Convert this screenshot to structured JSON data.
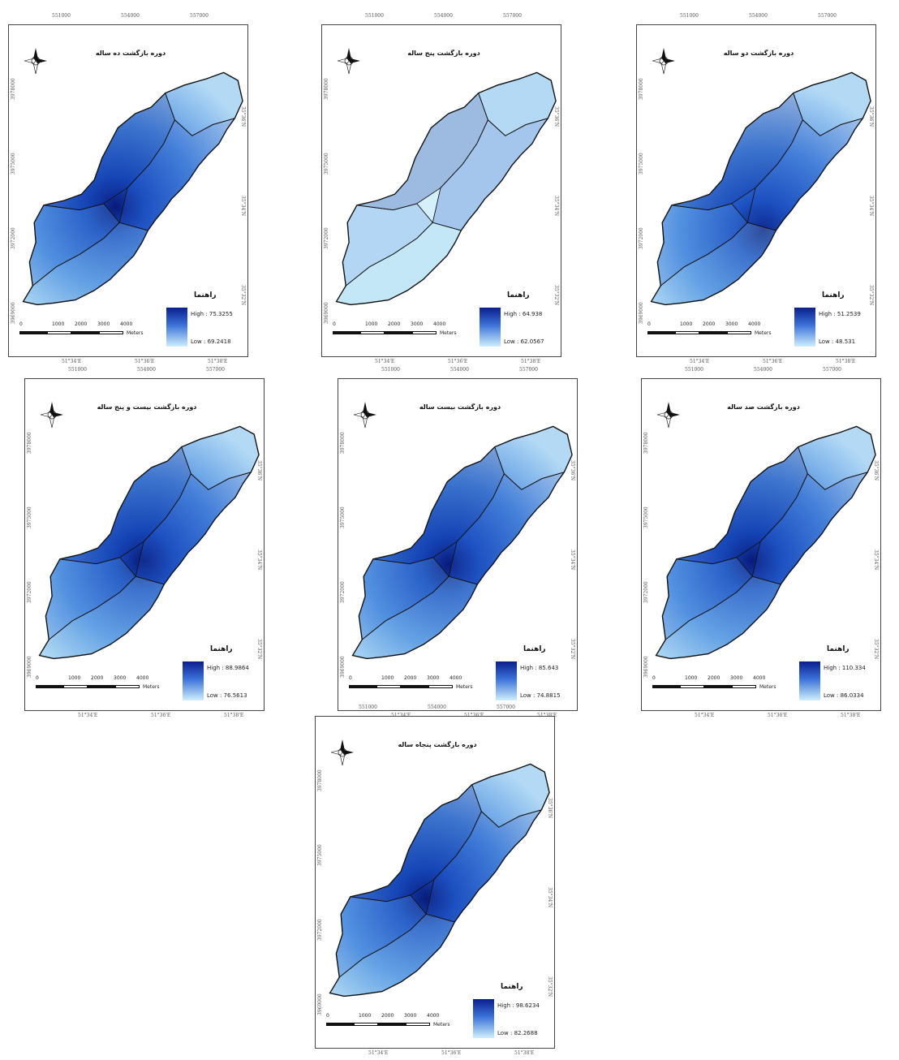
{
  "maps": [
    {
      "id": "m1",
      "title": "دوره بازگشت ده ساله",
      "legend_title": "راهنما",
      "high": "High : 75.3255",
      "low": "Low : 69.2418",
      "unit": "Meters",
      "scale_labels": [
        "0",
        "1000",
        "2000",
        "3000",
        "4000"
      ],
      "top_ticks": [
        "551000",
        "554000",
        "557000"
      ],
      "bottom_ticks": [
        "51°34'E",
        "51°36'E",
        "51°38'E"
      ],
      "left_ticks": [
        "3978000",
        "3975000",
        "3972000",
        "3969000"
      ],
      "right_ticks": [
        "35°36'N",
        "35°34'N",
        "35°32'N"
      ],
      "color_ramp": [
        "#0a1f8f",
        "#cfeefc"
      ]
    },
    {
      "id": "m2",
      "title": "دوره بازگشت پنج ساله",
      "legend_title": "راهنما",
      "high": "High : 64.938",
      "low": "Low : 62.0567",
      "unit": "Meters",
      "scale_labels": [
        "0",
        "1000",
        "2000",
        "3000",
        "4000"
      ],
      "top_ticks": [
        "551000",
        "554000",
        "557000"
      ],
      "bottom_ticks": [
        "51°34'E",
        "51°36'E",
        "51°38'E"
      ],
      "left_ticks": [
        "3978000",
        "3975000",
        "3972000",
        "3969000"
      ],
      "right_ticks": [
        "35°36'N",
        "35°34'N",
        "35°32'N"
      ],
      "color_ramp": [
        "#0a1f8f",
        "#cfeefc"
      ]
    },
    {
      "id": "m3",
      "title": "دوره بازگشت دو ساله",
      "legend_title": "راهنما",
      "high": "High : 51.2539",
      "low": "Low : 48.531",
      "unit": "Meters",
      "scale_labels": [
        "0",
        "1000",
        "2000",
        "3000",
        "4000"
      ],
      "top_ticks": [
        "551000",
        "554000",
        "557000"
      ],
      "bottom_ticks": [
        "51°34'E",
        "51°36'E",
        "51°38'E"
      ],
      "left_ticks": [
        "3978000",
        "3975000",
        "3972000",
        "3969000"
      ],
      "right_ticks": [
        "35°36'N",
        "35°34'N",
        "35°32'N"
      ],
      "color_ramp": [
        "#0a1f8f",
        "#cfeefc"
      ]
    },
    {
      "id": "m4",
      "title": "دوره بازگشت بیست و پنج ساله",
      "legend_title": "راهنما",
      "high": "High : 88.9864",
      "low": "Low : 76.5613",
      "unit": "Meters",
      "scale_labels": [
        "0",
        "1000",
        "2000",
        "3000",
        "4000"
      ],
      "top_ticks": [
        "551000",
        "554000",
        "557000"
      ],
      "bottom_ticks": [
        "51°34'E",
        "51°36'E",
        "51°38'E"
      ],
      "left_ticks": [
        "3978000",
        "3975000",
        "3972000",
        "3969000"
      ],
      "right_ticks": [
        "35°36'N",
        "35°34'N",
        "35°32'N"
      ],
      "color_ramp": [
        "#0a1f8f",
        "#cfeefc"
      ]
    },
    {
      "id": "m5",
      "title": "دوره بازگشت بیست ساله",
      "legend_title": "راهنما",
      "high": "High : 85.643",
      "low": "Low : 74.8815",
      "unit": "Meters",
      "scale_labels": [
        "0",
        "1000",
        "2000",
        "3000",
        "4000"
      ],
      "top_ticks": [
        "551000",
        "554000",
        "557000"
      ],
      "bottom_ticks": [
        "51°34'E",
        "51°36'E",
        "51°38'E"
      ],
      "left_ticks": [
        "3978000",
        "3975000",
        "3972000",
        "3969000"
      ],
      "right_ticks": [
        "35°36'N",
        "35°34'N",
        "35°32'N"
      ],
      "color_ramp": [
        "#0a1f8f",
        "#cfeefc"
      ]
    },
    {
      "id": "m6",
      "title": "دوره بازگشت صد ساله",
      "legend_title": "راهنما",
      "high": "High : 110.334",
      "low": "Low : 86.0334",
      "unit": "Meters",
      "scale_labels": [
        "0",
        "1000",
        "2000",
        "3000",
        "4000"
      ],
      "top_ticks": [
        "551000",
        "554000",
        "557000"
      ],
      "bottom_ticks": [
        "51°34'E",
        "51°36'E",
        "51°38'E"
      ],
      "left_ticks": [
        "3978000",
        "3975000",
        "3972000",
        "3969000"
      ],
      "right_ticks": [
        "35°36'N",
        "35°34'N",
        "35°32'N"
      ],
      "color_ramp": [
        "#0a1f8f",
        "#cfeefc"
      ]
    },
    {
      "id": "m7",
      "title": "دوره بازگشت پنجاه ساله",
      "legend_title": "راهنما",
      "high": "High : 98.6234",
      "low": "Low : 82.2688",
      "unit": "Meters",
      "scale_labels": [
        "0",
        "1000",
        "2000",
        "3000",
        "4000"
      ],
      "top_ticks": [
        "551000",
        "554000",
        "557000"
      ],
      "bottom_ticks": [
        "51°34'E",
        "51°36'E",
        "51°38'E"
      ],
      "left_ticks": [
        "3978000",
        "3975000",
        "3972000",
        "3969000"
      ],
      "right_ticks": [
        "35°36'N",
        "35°34'N",
        "35°32'N"
      ],
      "color_ramp": [
        "#0a1f8f",
        "#cfeefc"
      ]
    }
  ]
}
